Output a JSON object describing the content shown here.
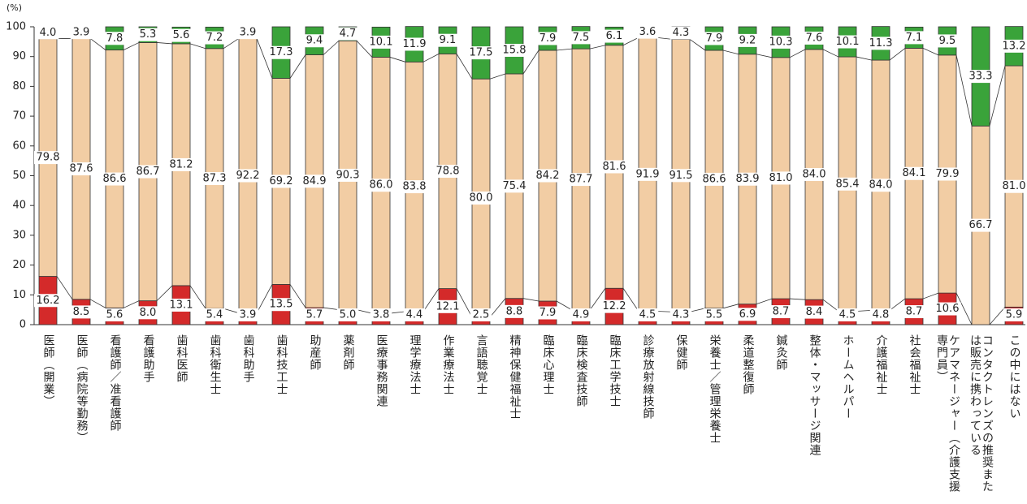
{
  "chart_data": {
    "type": "stacked_bar_100",
    "y_unit": "(%)",
    "categories": [
      "医師（開業）",
      "医師（病院等勤務）",
      "看護師／准看護師",
      "看護助手",
      "歯科医師",
      "歯科衛生士",
      "歯科助手",
      "歯科技工士",
      "助産師",
      "薬剤師",
      "医療事務関連",
      "理学療法士",
      "作業療法士",
      "言語聴覚士",
      "精神保健福祉士",
      "臨床心理士",
      "臨床検査技師",
      "臨床工学技士",
      "診療放射線技師",
      "保健師",
      "栄養士／管理栄養士",
      "柔道整復師",
      "鍼灸師",
      "整体・マッサージ関連",
      "ホームヘルパー",
      "介護福祉士",
      "社会福祉士",
      "ケアマネージャー（介護支援専門員）",
      "コンタクトレンズの推奨または販売に携わっている",
      "この中にはない"
    ],
    "series": [
      {
        "color": "#d42a2a",
        "values": [
          16.2,
          8.5,
          5.6,
          8.0,
          13.1,
          5.4,
          3.9,
          13.5,
          5.7,
          5.0,
          3.8,
          4.4,
          12.1,
          2.5,
          8.8,
          7.9,
          4.9,
          12.2,
          4.5,
          4.3,
          5.5,
          6.9,
          8.7,
          8.4,
          4.5,
          4.8,
          8.7,
          10.6,
          0,
          5.9
        ],
        "value_labels": [
          "16.2",
          "8.5",
          "5.6",
          "8.0",
          "13.1",
          "5.4",
          "3.9",
          "13.5",
          "5.7",
          "5.0",
          "3.8",
          "4.4",
          "12.1",
          "2.5",
          "8.8",
          "7.9",
          "4.9",
          "12.2",
          "4.5",
          "4.3",
          "5.5",
          "6.9",
          "8.7",
          "8.4",
          "4.5",
          "4.8",
          "8.7",
          "10.6",
          null,
          "5.9"
        ]
      },
      {
        "color": "#f2cda4",
        "values": [
          79.8,
          87.6,
          86.6,
          86.7,
          81.2,
          87.3,
          92.2,
          69.2,
          84.9,
          90.3,
          86.0,
          83.8,
          78.8,
          80.0,
          75.4,
          84.2,
          87.7,
          81.6,
          91.9,
          91.5,
          86.6,
          83.9,
          81.0,
          84.0,
          85.4,
          84.0,
          84.1,
          79.9,
          66.7,
          81.0
        ],
        "value_labels": [
          "79.8",
          "87.6",
          "86.6",
          "86.7",
          "81.2",
          "87.3",
          "92.2",
          "69.2",
          "84.9",
          "90.3",
          "86.0",
          "83.8",
          "78.8",
          "80.0",
          "75.4",
          "84.2",
          "87.7",
          "81.6",
          "91.9",
          "91.5",
          "86.6",
          "83.9",
          "81.0",
          "84.0",
          "85.4",
          "84.0",
          "84.1",
          "79.9",
          "66.7",
          "81.0"
        ]
      },
      {
        "color": "#3aa33a",
        "values": [
          4.0,
          3.9,
          7.8,
          5.3,
          5.6,
          7.2,
          3.9,
          17.3,
          9.4,
          4.7,
          10.1,
          11.9,
          9.1,
          17.5,
          15.8,
          7.9,
          7.5,
          6.1,
          3.6,
          4.3,
          7.9,
          9.2,
          10.3,
          7.6,
          10.1,
          11.3,
          7.1,
          9.5,
          33.3,
          13.2
        ],
        "value_labels": [
          "4.0",
          "3.9",
          "7.8",
          "5.3",
          "5.6",
          "7.2",
          "3.9",
          "17.3",
          "9.4",
          "4.7",
          "10.1",
          "11.9",
          "9.1",
          "17.5",
          "15.8",
          "7.9",
          "7.5",
          "6.1",
          "3.6",
          "4.3",
          "7.9",
          "9.2",
          "10.3",
          "7.6",
          "10.1",
          "11.3",
          "7.1",
          "9.5",
          "33.3",
          "13.2"
        ]
      }
    ],
    "ylim": [
      0,
      100
    ],
    "yticks": [
      0,
      10,
      20,
      30,
      40,
      50,
      60,
      70,
      80,
      90,
      100
    ],
    "series_lines": true
  }
}
